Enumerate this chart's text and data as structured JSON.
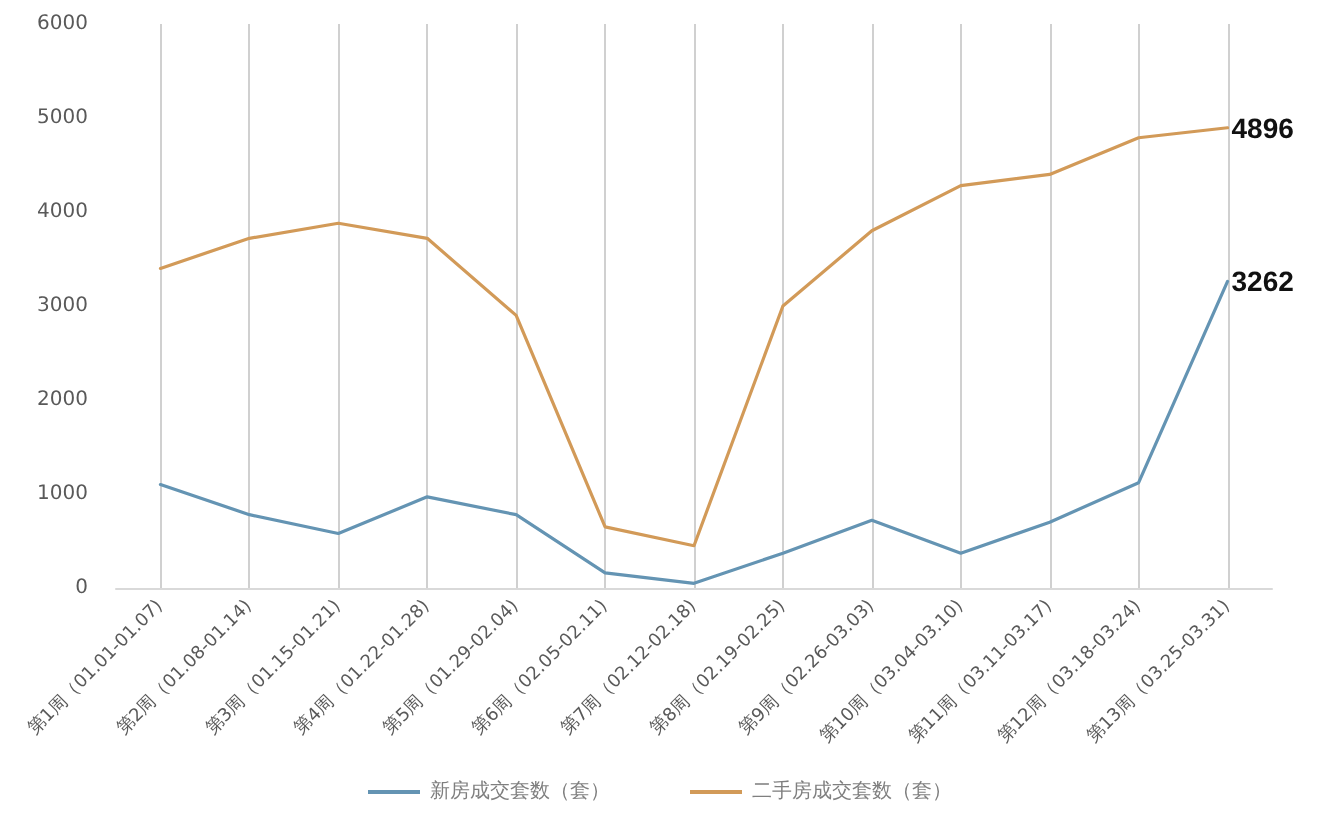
{
  "chart_data": {
    "type": "line",
    "categories": [
      "第1周（01.01-01.07)",
      "第2周（01.08-01.14)",
      "第3周（01.15-01.21)",
      "第4周（01.22-01.28)",
      "第5周（01.29-02.04)",
      "第6周（02.05-02.11)",
      "第7周（02.12-02.18)",
      "第8周（02.19-02.25)",
      "第9周（02.26-03.03)",
      "第10周（03.04-03.10)",
      "第11周（03.11-03.17)",
      "第12周（03.18-03.24)",
      "第13周（03.25-03.31)"
    ],
    "series": [
      {
        "name": "新房成交套数（套）",
        "color": "#6494b3",
        "values": [
          1100,
          780,
          580,
          970,
          780,
          160,
          50,
          370,
          720,
          370,
          700,
          1120,
          3262
        ],
        "value_labels": [
          null,
          null,
          null,
          null,
          null,
          null,
          null,
          null,
          null,
          null,
          null,
          null,
          "3262"
        ]
      },
      {
        "name": "二手房成交套数（套）",
        "color": "#d29a58",
        "values": [
          3400,
          3720,
          3880,
          3720,
          2900,
          650,
          450,
          3000,
          3800,
          4280,
          4400,
          4790,
          4896
        ],
        "value_labels": [
          null,
          null,
          null,
          null,
          null,
          null,
          null,
          null,
          null,
          null,
          null,
          null,
          "4896"
        ]
      }
    ],
    "ylim": [
      0,
      6000
    ],
    "yticks": [
      0,
      1000,
      2000,
      3000,
      4000,
      5000,
      6000
    ],
    "grid": "x",
    "legend": "bottom",
    "marker": "none",
    "line_style": "solid"
  }
}
